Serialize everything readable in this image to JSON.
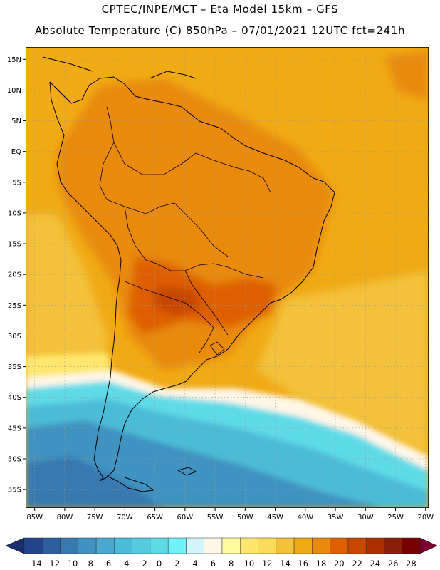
{
  "header": {
    "line1": "CPTEC/INPE/MCT –  Eta Model 15km – GFS",
    "line2": "Absolute Temperature (C) 850hPa – 07/01/2021 12UTC fct=241h"
  },
  "map": {
    "lat_labels": [
      "15N",
      "10N",
      "5N",
      "EQ",
      "5S",
      "10S",
      "15S",
      "20S",
      "25S",
      "30S",
      "35S",
      "40S",
      "45S",
      "50S",
      "55S"
    ],
    "lat_values": [
      15,
      10,
      5,
      0,
      -5,
      -10,
      -15,
      -20,
      -25,
      -30,
      -35,
      -40,
      -45,
      -50,
      -55
    ],
    "lon_labels": [
      "85W",
      "80W",
      "75W",
      "70W",
      "65W",
      "60W",
      "55W",
      "50W",
      "45W",
      "40W",
      "35W",
      "30W",
      "25W",
      "20W"
    ],
    "lon_values": [
      -85,
      -80,
      -75,
      -70,
      -65,
      -60,
      -55,
      -50,
      -45,
      -40,
      -35,
      -30,
      -25,
      -20
    ],
    "lat_range": [
      -58,
      17
    ],
    "lon_range": [
      -86.5,
      -19.5
    ]
  },
  "colorbar": {
    "labels": [
      "-14",
      "-12",
      "-10",
      "-8",
      "-6",
      "-4",
      "-2",
      "0",
      "2",
      "4",
      "6",
      "8",
      "10",
      "12",
      "14",
      "16",
      "18",
      "20",
      "22",
      "24",
      "26",
      "28"
    ],
    "colors": [
      "#23448c",
      "#2d5fa0",
      "#3779b0",
      "#4192c0",
      "#4aa8ce",
      "#4bbcd8",
      "#55cbe0",
      "#5fdbe8",
      "#6ef4f8",
      "#d2f4fa",
      "#fff6e6",
      "#fffaa0",
      "#ffe76e",
      "#fadc5a",
      "#f3c13a",
      "#f0aa14",
      "#e98a0f",
      "#de5f00",
      "#c84600",
      "#aa3000",
      "#8b1e0a",
      "#780000"
    ]
  }
}
